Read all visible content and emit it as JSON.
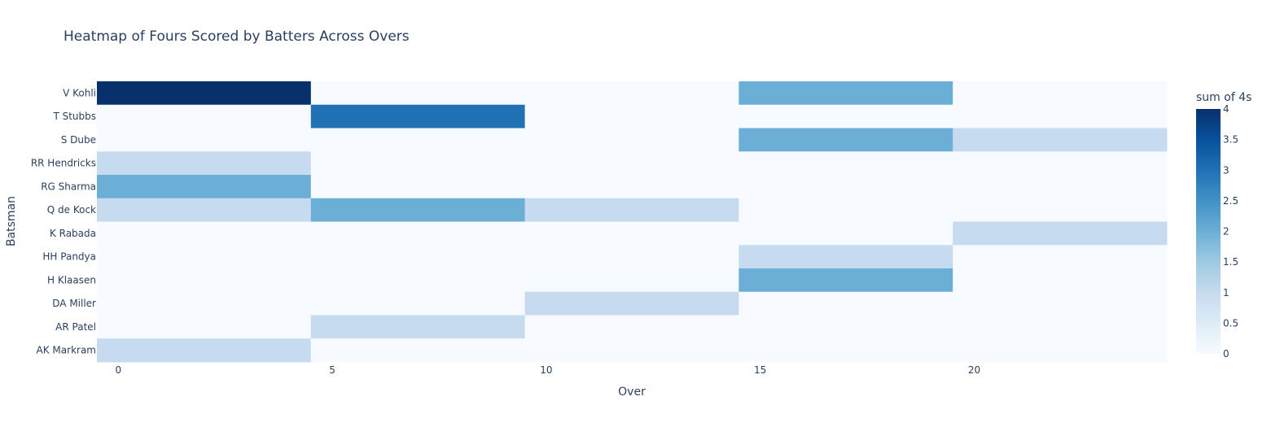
{
  "chart_data": {
    "type": "heatmap",
    "title": "Heatmap of Fours Scored by Batters Across Overs",
    "xlabel": "Over",
    "ylabel": "Batsman",
    "x_bins": [
      {
        "start": -0.5,
        "end": 4.5
      },
      {
        "start": 4.5,
        "end": 9.5
      },
      {
        "start": 9.5,
        "end": 14.5
      },
      {
        "start": 14.5,
        "end": 19.5
      },
      {
        "start": 19.5,
        "end": 24.5
      }
    ],
    "x_ticks": [
      0,
      5,
      10,
      15,
      20
    ],
    "xlim": [
      -0.5,
      24.5
    ],
    "y_categories": [
      "V Kohli",
      "T Stubbs",
      "S Dube",
      "RR Hendricks",
      "RG Sharma",
      "Q de Kock",
      "K Rabada",
      "HH Pandya",
      "H Klaasen",
      "DA Miller",
      "AR Patel",
      "AK Markram"
    ],
    "z": [
      [
        4,
        0,
        0,
        2,
        0
      ],
      [
        0,
        3,
        0,
        0,
        0
      ],
      [
        0,
        0,
        0,
        2,
        1
      ],
      [
        1,
        0,
        0,
        0,
        0
      ],
      [
        2,
        0,
        0,
        0,
        0
      ],
      [
        1,
        2,
        1,
        0,
        0
      ],
      [
        0,
        0,
        0,
        0,
        1
      ],
      [
        0,
        0,
        0,
        1,
        0
      ],
      [
        0,
        0,
        0,
        2,
        0
      ],
      [
        0,
        0,
        1,
        0,
        0
      ],
      [
        0,
        1,
        0,
        0,
        0
      ],
      [
        1,
        0,
        0,
        0,
        0
      ]
    ],
    "colorbar": {
      "title": "sum of 4s",
      "range": [
        0,
        4
      ],
      "ticks": [
        "0",
        "0.5",
        "1",
        "1.5",
        "2",
        "2.5",
        "3",
        "3.5",
        "4"
      ],
      "colorscale": [
        "#f7fbff",
        "#deebf7",
        "#c6dbef",
        "#9ecae1",
        "#6baed6",
        "#4292c6",
        "#2171b5",
        "#08519c",
        "#08306b"
      ]
    },
    "grid": false
  }
}
